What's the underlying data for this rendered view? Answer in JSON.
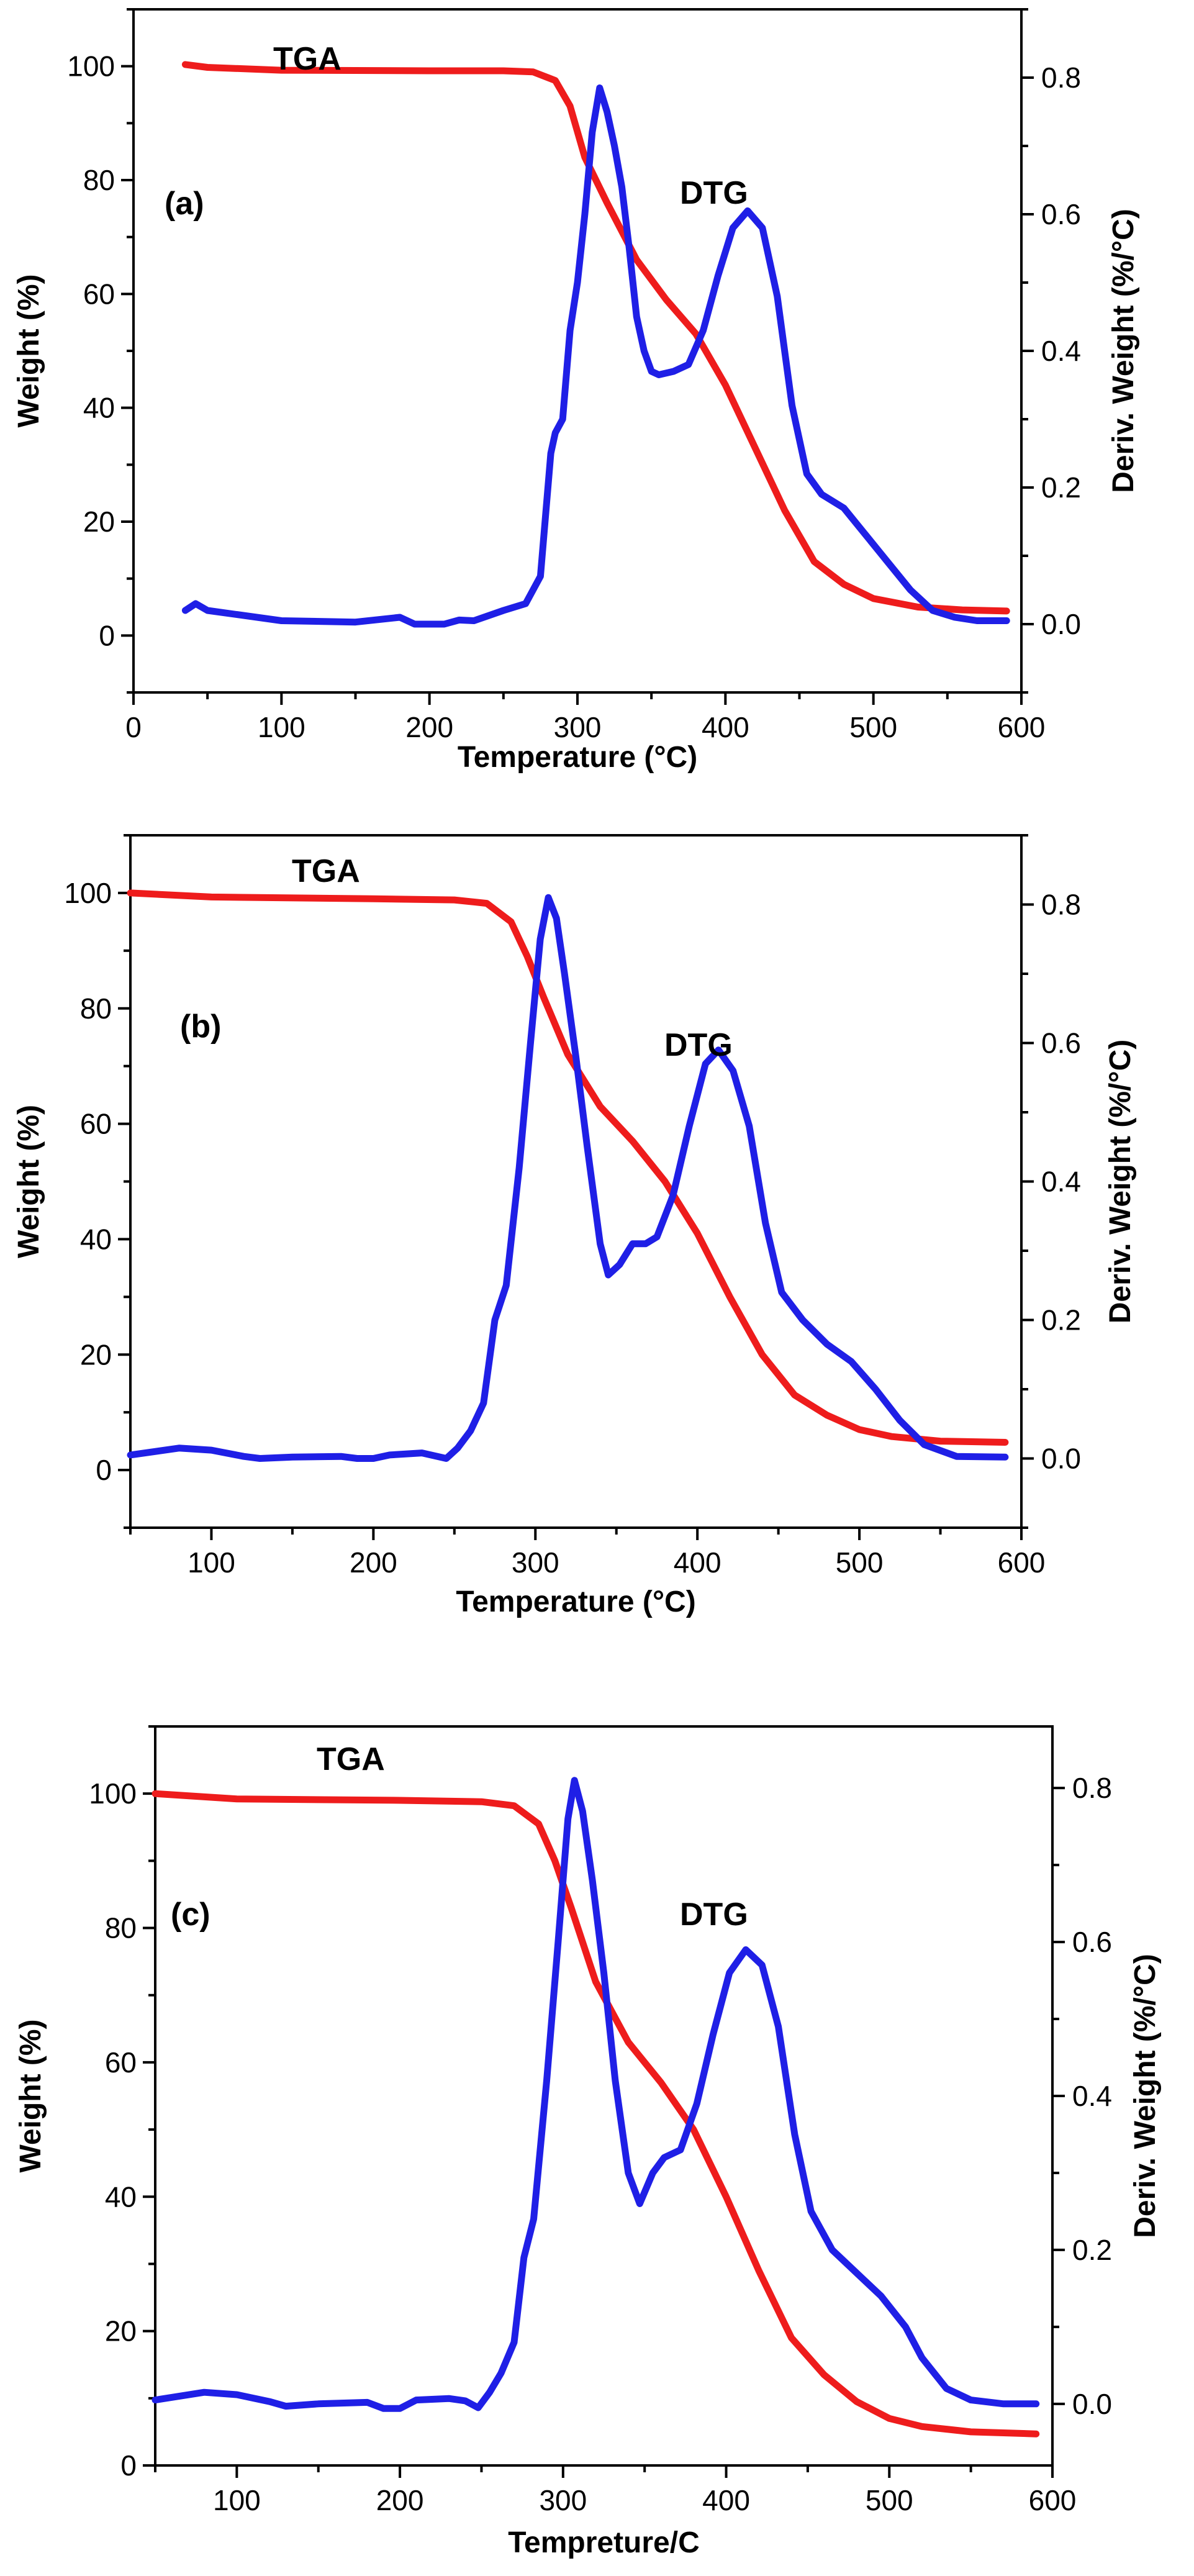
{
  "colors": {
    "tga": "#ee1c1c",
    "dtg": "#1f1fe6"
  },
  "chart_data": [
    {
      "type": "line",
      "panel_label": "(a)",
      "xlabel": "Temperature (°C)",
      "ylabel": "Weight (%)",
      "y2label": "Deriv. Weight (%/°C)",
      "xlim": [
        0,
        600
      ],
      "ylim": [
        -10,
        110
      ],
      "y2lim": [
        -0.1,
        0.9
      ],
      "xticks": [
        0,
        100,
        200,
        300,
        400,
        500,
        600
      ],
      "yticks": [
        0,
        20,
        40,
        60,
        80,
        100
      ],
      "y2ticks": [
        0.0,
        0.2,
        0.4,
        0.6,
        0.8
      ],
      "x_tick_labels": [
        "0",
        "100",
        "200",
        "300",
        "400",
        "500",
        "600"
      ],
      "y_tick_labels": [
        "0",
        "20",
        "40",
        "60",
        "80",
        "100"
      ],
      "y2_tick_labels": [
        "0.0",
        "0.2",
        "0.4",
        "0.6",
        "0.8"
      ],
      "series": [
        {
          "name": "TGA",
          "axis": "left",
          "color": "#ee1c1c",
          "label": "TGA",
          "points": [
            [
              35,
              100.3
            ],
            [
              50,
              99.8
            ],
            [
              100,
              99.3
            ],
            [
              200,
              99.2
            ],
            [
              250,
              99.2
            ],
            [
              270,
              99
            ],
            [
              285,
              97.5
            ],
            [
              295,
              93
            ],
            [
              305,
              84
            ],
            [
              320,
              76
            ],
            [
              340,
              66
            ],
            [
              360,
              59
            ],
            [
              380,
              53
            ],
            [
              400,
              44
            ],
            [
              420,
              33
            ],
            [
              440,
              22
            ],
            [
              460,
              13
            ],
            [
              480,
              9
            ],
            [
              500,
              6.5
            ],
            [
              530,
              5
            ],
            [
              560,
              4.5
            ],
            [
              590,
              4.3
            ]
          ]
        },
        {
          "name": "DTG",
          "axis": "right",
          "color": "#1f1fe6",
          "label": "DTG",
          "points": [
            [
              35,
              0.02
            ],
            [
              42,
              0.03
            ],
            [
              50,
              0.02
            ],
            [
              100,
              0.005
            ],
            [
              150,
              0.003
            ],
            [
              180,
              0.01
            ],
            [
              190,
              0.0
            ],
            [
              210,
              0.0
            ],
            [
              220,
              0.006
            ],
            [
              230,
              0.005
            ],
            [
              250,
              0.02
            ],
            [
              265,
              0.03
            ],
            [
              275,
              0.07
            ],
            [
              282,
              0.25
            ],
            [
              285,
              0.28
            ],
            [
              290,
              0.3
            ],
            [
              295,
              0.43
            ],
            [
              300,
              0.5
            ],
            [
              305,
              0.6
            ],
            [
              310,
              0.72
            ],
            [
              315,
              0.785
            ],
            [
              320,
              0.75
            ],
            [
              325,
              0.7
            ],
            [
              330,
              0.64
            ],
            [
              335,
              0.55
            ],
            [
              340,
              0.45
            ],
            [
              345,
              0.4
            ],
            [
              350,
              0.37
            ],
            [
              355,
              0.365
            ],
            [
              365,
              0.37
            ],
            [
              375,
              0.38
            ],
            [
              385,
              0.43
            ],
            [
              395,
              0.51
            ],
            [
              405,
              0.58
            ],
            [
              415,
              0.605
            ],
            [
              425,
              0.58
            ],
            [
              435,
              0.48
            ],
            [
              445,
              0.32
            ],
            [
              455,
              0.22
            ],
            [
              465,
              0.19
            ],
            [
              480,
              0.17
            ],
            [
              495,
              0.13
            ],
            [
              510,
              0.09
            ],
            [
              525,
              0.05
            ],
            [
              540,
              0.02
            ],
            [
              555,
              0.01
            ],
            [
              570,
              0.005
            ],
            [
              590,
              0.005
            ]
          ]
        }
      ]
    },
    {
      "type": "line",
      "panel_label": "(b)",
      "xlabel": "Temperature (°C)",
      "ylabel": "Weight (%)",
      "y2label": "Deriv. Weight (%/°C)",
      "xlim": [
        50,
        600
      ],
      "ylim": [
        -10,
        110
      ],
      "y2lim": [
        -0.1,
        0.9
      ],
      "xticks": [
        100,
        200,
        300,
        400,
        500,
        600
      ],
      "yticks": [
        0,
        20,
        40,
        60,
        80,
        100
      ],
      "y2ticks": [
        0.0,
        0.2,
        0.4,
        0.6,
        0.8
      ],
      "x_tick_labels": [
        "100",
        "200",
        "300",
        "400",
        "500",
        "600"
      ],
      "y_tick_labels": [
        "0",
        "20",
        "40",
        "60",
        "80",
        "100"
      ],
      "y2_tick_labels": [
        "0.0",
        "0.2",
        "0.4",
        "0.6",
        "0.8"
      ],
      "series": [
        {
          "name": "TGA",
          "axis": "left",
          "color": "#ee1c1c",
          "label": "TGA",
          "points": [
            [
              50,
              100
            ],
            [
              100,
              99.3
            ],
            [
              200,
              99
            ],
            [
              250,
              98.8
            ],
            [
              270,
              98.2
            ],
            [
              285,
              95
            ],
            [
              295,
              89
            ],
            [
              305,
              82
            ],
            [
              320,
              72
            ],
            [
              340,
              63
            ],
            [
              360,
              57
            ],
            [
              380,
              50
            ],
            [
              400,
              41
            ],
            [
              420,
              30
            ],
            [
              440,
              20
            ],
            [
              460,
              13
            ],
            [
              480,
              9.5
            ],
            [
              500,
              7
            ],
            [
              520,
              5.8
            ],
            [
              550,
              5
            ],
            [
              590,
              4.8
            ]
          ]
        },
        {
          "name": "DTG",
          "axis": "right",
          "color": "#1f1fe6",
          "label": "DTG",
          "points": [
            [
              50,
              0.005
            ],
            [
              80,
              0.015
            ],
            [
              100,
              0.012
            ],
            [
              120,
              0.003
            ],
            [
              130,
              0.0
            ],
            [
              150,
              0.002
            ],
            [
              180,
              0.003
            ],
            [
              190,
              0.0
            ],
            [
              200,
              0.0
            ],
            [
              210,
              0.005
            ],
            [
              230,
              0.008
            ],
            [
              245,
              0.0
            ],
            [
              252,
              0.015
            ],
            [
              260,
              0.04
            ],
            [
              268,
              0.08
            ],
            [
              275,
              0.2
            ],
            [
              282,
              0.25
            ],
            [
              290,
              0.42
            ],
            [
              297,
              0.6
            ],
            [
              303,
              0.75
            ],
            [
              308,
              0.81
            ],
            [
              313,
              0.78
            ],
            [
              318,
              0.7
            ],
            [
              325,
              0.58
            ],
            [
              332,
              0.45
            ],
            [
              340,
              0.31
            ],
            [
              345,
              0.265
            ],
            [
              352,
              0.28
            ],
            [
              360,
              0.31
            ],
            [
              368,
              0.31
            ],
            [
              375,
              0.32
            ],
            [
              385,
              0.38
            ],
            [
              395,
              0.48
            ],
            [
              405,
              0.57
            ],
            [
              413,
              0.59
            ],
            [
              422,
              0.56
            ],
            [
              432,
              0.48
            ],
            [
              442,
              0.34
            ],
            [
              452,
              0.24
            ],
            [
              465,
              0.2
            ],
            [
              480,
              0.165
            ],
            [
              495,
              0.14
            ],
            [
              510,
              0.1
            ],
            [
              525,
              0.055
            ],
            [
              540,
              0.02
            ],
            [
              560,
              0.003
            ],
            [
              590,
              0.002
            ]
          ]
        }
      ]
    },
    {
      "type": "line",
      "panel_label": "(c)",
      "xlabel": "Tempreture/C",
      "ylabel": "Weight (%)",
      "y2label": "Deriv. Weight (%/°C)",
      "xlim": [
        50,
        600
      ],
      "ylim": [
        0,
        110
      ],
      "y2lim": [
        -0.08,
        0.88
      ],
      "xticks": [
        100,
        200,
        300,
        400,
        500,
        600
      ],
      "yticks": [
        0,
        20,
        40,
        60,
        80,
        100
      ],
      "y2ticks": [
        0.0,
        0.2,
        0.4,
        0.6,
        0.8
      ],
      "x_tick_labels": [
        "100",
        "200",
        "300",
        "400",
        "500",
        "600"
      ],
      "y_tick_labels": [
        "0",
        "20",
        "40",
        "60",
        "80",
        "100"
      ],
      "y2_tick_labels": [
        "0.0",
        "0.2",
        "0.4",
        "0.6",
        "0.8"
      ],
      "series": [
        {
          "name": "TGA",
          "axis": "left",
          "color": "#ee1c1c",
          "label": "TGA",
          "points": [
            [
              50,
              100
            ],
            [
              100,
              99.2
            ],
            [
              200,
              99
            ],
            [
              250,
              98.8
            ],
            [
              270,
              98.2
            ],
            [
              285,
              95.5
            ],
            [
              295,
              90
            ],
            [
              305,
              83
            ],
            [
              320,
              72
            ],
            [
              340,
              63
            ],
            [
              360,
              57
            ],
            [
              380,
              50
            ],
            [
              400,
              40
            ],
            [
              420,
              29
            ],
            [
              440,
              19
            ],
            [
              460,
              13.5
            ],
            [
              480,
              9.5
            ],
            [
              500,
              7
            ],
            [
              520,
              5.8
            ],
            [
              550,
              5
            ],
            [
              590,
              4.7
            ]
          ]
        },
        {
          "name": "DTG",
          "axis": "right",
          "color": "#1f1fe6",
          "label": "DTG",
          "points": [
            [
              50,
              0.005
            ],
            [
              80,
              0.015
            ],
            [
              100,
              0.012
            ],
            [
              120,
              0.003
            ],
            [
              130,
              -0.003
            ],
            [
              150,
              0.0
            ],
            [
              180,
              0.002
            ],
            [
              190,
              -0.006
            ],
            [
              200,
              -0.006
            ],
            [
              210,
              0.005
            ],
            [
              230,
              0.007
            ],
            [
              240,
              0.004
            ],
            [
              248,
              -0.005
            ],
            [
              255,
              0.015
            ],
            [
              262,
              0.04
            ],
            [
              270,
              0.08
            ],
            [
              276,
              0.19
            ],
            [
              282,
              0.24
            ],
            [
              290,
              0.42
            ],
            [
              297,
              0.6
            ],
            [
              303,
              0.76
            ],
            [
              307,
              0.81
            ],
            [
              312,
              0.77
            ],
            [
              318,
              0.68
            ],
            [
              325,
              0.56
            ],
            [
              332,
              0.42
            ],
            [
              340,
              0.3
            ],
            [
              347,
              0.26
            ],
            [
              355,
              0.3
            ],
            [
              362,
              0.32
            ],
            [
              372,
              0.33
            ],
            [
              382,
              0.39
            ],
            [
              392,
              0.48
            ],
            [
              402,
              0.56
            ],
            [
              412,
              0.59
            ],
            [
              422,
              0.57
            ],
            [
              432,
              0.49
            ],
            [
              442,
              0.35
            ],
            [
              452,
              0.25
            ],
            [
              465,
              0.2
            ],
            [
              480,
              0.17
            ],
            [
              495,
              0.14
            ],
            [
              510,
              0.1
            ],
            [
              520,
              0.06
            ],
            [
              535,
              0.02
            ],
            [
              550,
              0.005
            ],
            [
              570,
              0.0
            ],
            [
              590,
              0.0
            ]
          ]
        }
      ]
    }
  ]
}
